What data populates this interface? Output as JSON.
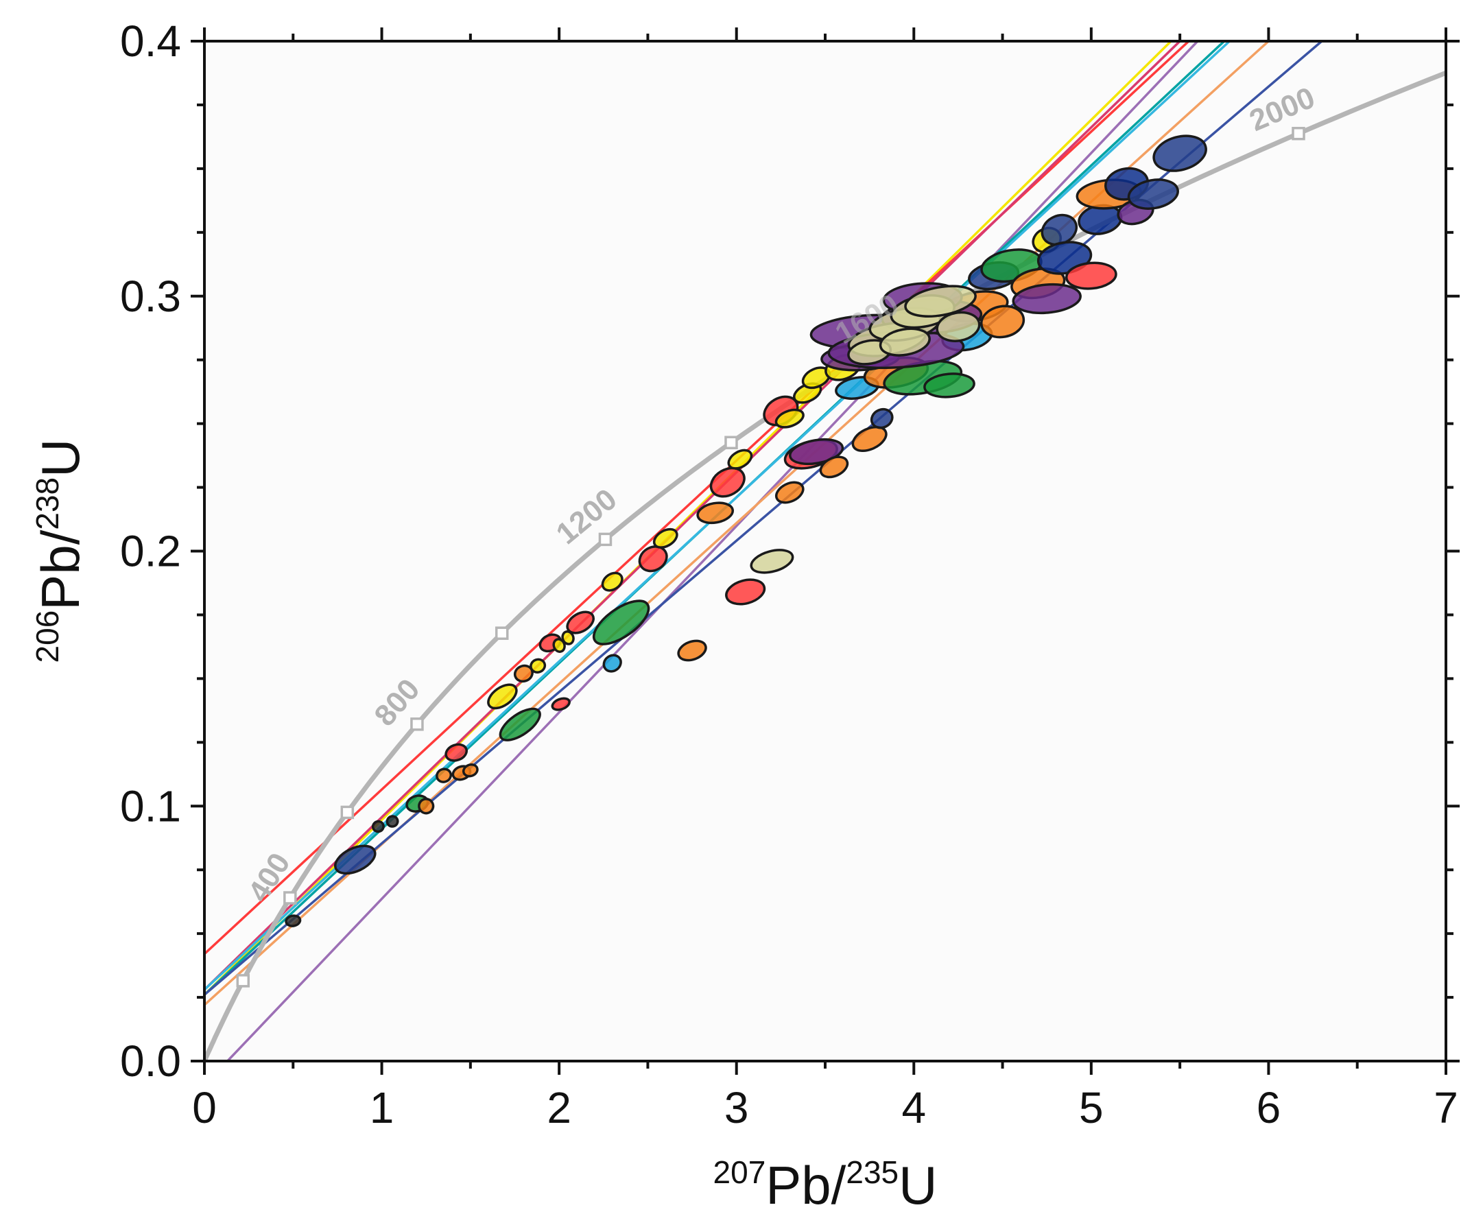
{
  "chart_data": {
    "type": "scatter",
    "subtype": "U-Pb concordia diagram with discordia lines and error ellipses",
    "xlabel": {
      "sup1": "207",
      "base1": "Pb/",
      "sup2": "235",
      "base2": "U"
    },
    "ylabel": {
      "sup1": "206",
      "base1": "Pb/",
      "sup2": "238",
      "base2": "U"
    },
    "xlim": [
      0,
      7
    ],
    "ylim": [
      0,
      0.4
    ],
    "x_ticks": [
      "0",
      "1",
      "2",
      "3",
      "4",
      "5",
      "6",
      "7"
    ],
    "y_ticks": [
      "0.0",
      "0.1",
      "0.2",
      "0.3",
      "0.4"
    ],
    "concordia": {
      "color": "#b5b5b5",
      "markers_Ma": [
        200,
        400,
        600,
        800,
        1000,
        1200,
        1400,
        1600,
        2000
      ],
      "labels": [
        {
          "text": "400",
          "age": 400
        },
        {
          "text": "800",
          "age": 800
        },
        {
          "text": "1200",
          "age": 1200
        },
        {
          "text": "1600",
          "age": 1600
        },
        {
          "text": "2000",
          "age": 2000
        }
      ]
    },
    "discordia_lines": [
      {
        "color": "#f5e600",
        "x0": 0,
        "y0": 0.026,
        "x1": 5.45,
        "y1": 0.4
      },
      {
        "color": "#ff3b3b",
        "x0": 0,
        "y0": 0.042,
        "x1": 5.55,
        "y1": 0.4
      },
      {
        "color": "#d93a6e",
        "x0": 0,
        "y0": 0.028,
        "x1": 5.5,
        "y1": 0.4
      },
      {
        "color": "#9c6fb5",
        "x0": 0.13,
        "y0": 0.0,
        "x1": 5.6,
        "y1": 0.4
      },
      {
        "color": "#00a3a3",
        "x0": 0,
        "y0": 0.026,
        "x1": 5.75,
        "y1": 0.4
      },
      {
        "color": "#35b8e0",
        "x0": 0,
        "y0": 0.028,
        "x1": 5.78,
        "y1": 0.4
      },
      {
        "color": "#f3a062",
        "x0": 0,
        "y0": 0.022,
        "x1": 6.0,
        "y1": 0.4
      },
      {
        "color": "#3a53a4",
        "x0": 0,
        "y0": 0.026,
        "x1": 6.3,
        "y1": 0.4
      }
    ],
    "ellipses": [
      {
        "x": 0.85,
        "y": 0.079,
        "rx": 0.12,
        "ry": 0.0045,
        "rot": -25,
        "color": "#233e8b"
      },
      {
        "x": 0.5,
        "y": 0.055,
        "rx": 0.04,
        "ry": 0.002,
        "rot": -10,
        "color": "#333333"
      },
      {
        "x": 0.98,
        "y": 0.092,
        "rx": 0.03,
        "ry": 0.002,
        "rot": -20,
        "color": "#333333"
      },
      {
        "x": 1.06,
        "y": 0.094,
        "rx": 0.03,
        "ry": 0.002,
        "rot": -20,
        "color": "#333333"
      },
      {
        "x": 1.2,
        "y": 0.101,
        "rx": 0.06,
        "ry": 0.003,
        "rot": -15,
        "color": "#1a9b3c"
      },
      {
        "x": 1.25,
        "y": 0.1,
        "rx": 0.04,
        "ry": 0.0028,
        "rot": -20,
        "color": "#f57f17"
      },
      {
        "x": 1.35,
        "y": 0.112,
        "rx": 0.04,
        "ry": 0.0025,
        "rot": -20,
        "color": "#f57f17"
      },
      {
        "x": 1.45,
        "y": 0.113,
        "rx": 0.05,
        "ry": 0.0025,
        "rot": -20,
        "color": "#f57f17"
      },
      {
        "x": 1.42,
        "y": 0.121,
        "rx": 0.06,
        "ry": 0.003,
        "rot": -20,
        "color": "#ff3b3b"
      },
      {
        "x": 1.5,
        "y": 0.114,
        "rx": 0.04,
        "ry": 0.0022,
        "rot": -20,
        "color": "#f57f17"
      },
      {
        "x": 1.68,
        "y": 0.143,
        "rx": 0.09,
        "ry": 0.0035,
        "rot": -35,
        "color": "#f5e600"
      },
      {
        "x": 1.78,
        "y": 0.132,
        "rx": 0.13,
        "ry": 0.004,
        "rot": -35,
        "color": "#1a9b3c"
      },
      {
        "x": 1.8,
        "y": 0.152,
        "rx": 0.05,
        "ry": 0.003,
        "rot": -20,
        "color": "#f57f17"
      },
      {
        "x": 1.88,
        "y": 0.155,
        "rx": 0.04,
        "ry": 0.0025,
        "rot": -20,
        "color": "#f5e600"
      },
      {
        "x": 1.95,
        "y": 0.164,
        "rx": 0.06,
        "ry": 0.003,
        "rot": -25,
        "color": "#ff3b3b"
      },
      {
        "x": 2.0,
        "y": 0.163,
        "rx": 0.03,
        "ry": 0.0025,
        "rot": -20,
        "color": "#f5e600"
      },
      {
        "x": 2.05,
        "y": 0.166,
        "rx": 0.03,
        "ry": 0.0025,
        "rot": -20,
        "color": "#f5e600"
      },
      {
        "x": 2.12,
        "y": 0.172,
        "rx": 0.08,
        "ry": 0.0035,
        "rot": -30,
        "color": "#ff3b3b"
      },
      {
        "x": 2.01,
        "y": 0.14,
        "rx": 0.05,
        "ry": 0.002,
        "rot": -20,
        "color": "#ff3b3b"
      },
      {
        "x": 2.3,
        "y": 0.188,
        "rx": 0.06,
        "ry": 0.003,
        "rot": -35,
        "color": "#f5e600"
      },
      {
        "x": 2.35,
        "y": 0.172,
        "rx": 0.18,
        "ry": 0.0055,
        "rot": -35,
        "color": "#1a9b3c"
      },
      {
        "x": 2.3,
        "y": 0.156,
        "rx": 0.05,
        "ry": 0.003,
        "rot": -35,
        "color": "#1aa3dc"
      },
      {
        "x": 2.53,
        "y": 0.197,
        "rx": 0.08,
        "ry": 0.0045,
        "rot": -30,
        "color": "#ff3b3b"
      },
      {
        "x": 2.6,
        "y": 0.205,
        "rx": 0.07,
        "ry": 0.003,
        "rot": -30,
        "color": "#f5e600"
      },
      {
        "x": 2.75,
        "y": 0.161,
        "rx": 0.08,
        "ry": 0.0035,
        "rot": -20,
        "color": "#f57f17"
      },
      {
        "x": 2.88,
        "y": 0.215,
        "rx": 0.1,
        "ry": 0.0038,
        "rot": -10,
        "color": "#f57f17"
      },
      {
        "x": 2.95,
        "y": 0.227,
        "rx": 0.1,
        "ry": 0.005,
        "rot": -30,
        "color": "#ff3b3b"
      },
      {
        "x": 3.02,
        "y": 0.236,
        "rx": 0.07,
        "ry": 0.003,
        "rot": -30,
        "color": "#f5e600"
      },
      {
        "x": 3.05,
        "y": 0.184,
        "rx": 0.11,
        "ry": 0.0045,
        "rot": -15,
        "color": "#ff3b3b"
      },
      {
        "x": 3.2,
        "y": 0.196,
        "rx": 0.12,
        "ry": 0.004,
        "rot": -15,
        "color": "#d4d49a"
      },
      {
        "x": 3.25,
        "y": 0.255,
        "rx": 0.1,
        "ry": 0.005,
        "rot": -30,
        "color": "#ff3b3b"
      },
      {
        "x": 3.3,
        "y": 0.252,
        "rx": 0.08,
        "ry": 0.003,
        "rot": -20,
        "color": "#f5e600"
      },
      {
        "x": 3.3,
        "y": 0.223,
        "rx": 0.08,
        "ry": 0.0035,
        "rot": -25,
        "color": "#f57f17"
      },
      {
        "x": 3.4,
        "y": 0.262,
        "rx": 0.08,
        "ry": 0.0032,
        "rot": -25,
        "color": "#f5e600"
      },
      {
        "x": 3.45,
        "y": 0.268,
        "rx": 0.08,
        "ry": 0.0035,
        "rot": -25,
        "color": "#f5e600"
      },
      {
        "x": 3.42,
        "y": 0.238,
        "rx": 0.15,
        "ry": 0.005,
        "rot": -15,
        "color": "#ff3b3b"
      },
      {
        "x": 3.45,
        "y": 0.239,
        "rx": 0.15,
        "ry": 0.0045,
        "rot": -10,
        "color": "#6b2d8c"
      },
      {
        "x": 3.55,
        "y": 0.233,
        "rx": 0.08,
        "ry": 0.0035,
        "rot": -25,
        "color": "#f57f17"
      },
      {
        "x": 3.6,
        "y": 0.272,
        "rx": 0.1,
        "ry": 0.0045,
        "rot": -20,
        "color": "#f5e600"
      },
      {
        "x": 3.68,
        "y": 0.264,
        "rx": 0.12,
        "ry": 0.004,
        "rot": -10,
        "color": "#1aa3dc"
      },
      {
        "x": 3.75,
        "y": 0.244,
        "rx": 0.1,
        "ry": 0.004,
        "rot": -25,
        "color": "#f57f17"
      },
      {
        "x": 3.82,
        "y": 0.252,
        "rx": 0.06,
        "ry": 0.0035,
        "rot": -25,
        "color": "#233e8b"
      },
      {
        "x": 3.9,
        "y": 0.27,
        "rx": 0.18,
        "ry": 0.0055,
        "rot": -10,
        "color": "#f57f17"
      },
      {
        "x": 4.05,
        "y": 0.268,
        "rx": 0.22,
        "ry": 0.006,
        "rot": -10,
        "color": "#1a9b3c"
      },
      {
        "x": 4.2,
        "y": 0.265,
        "rx": 0.14,
        "ry": 0.0045,
        "rot": -5,
        "color": "#1a9b3c"
      },
      {
        "x": 4.3,
        "y": 0.284,
        "rx": 0.14,
        "ry": 0.005,
        "rot": -10,
        "color": "#1aa3dc"
      },
      {
        "x": 4.35,
        "y": 0.296,
        "rx": 0.18,
        "ry": 0.0055,
        "rot": -10,
        "color": "#f57f17"
      },
      {
        "x": 4.45,
        "y": 0.308,
        "rx": 0.14,
        "ry": 0.005,
        "rot": -10,
        "color": "#233e8b"
      },
      {
        "x": 4.55,
        "y": 0.312,
        "rx": 0.17,
        "ry": 0.006,
        "rot": -10,
        "color": "#1a9b3c"
      },
      {
        "x": 4.5,
        "y": 0.29,
        "rx": 0.12,
        "ry": 0.006,
        "rot": -10,
        "color": "#f57f17"
      },
      {
        "x": 4.7,
        "y": 0.305,
        "rx": 0.15,
        "ry": 0.0055,
        "rot": -10,
        "color": "#f57f17"
      },
      {
        "x": 4.75,
        "y": 0.299,
        "rx": 0.19,
        "ry": 0.0055,
        "rot": -5,
        "color": "#6b2d8c"
      },
      {
        "x": 4.75,
        "y": 0.322,
        "rx": 0.08,
        "ry": 0.0045,
        "rot": -25,
        "color": "#f5e600"
      },
      {
        "x": 4.82,
        "y": 0.326,
        "rx": 0.1,
        "ry": 0.0055,
        "rot": -25,
        "color": "#233e8b"
      },
      {
        "x": 4.85,
        "y": 0.315,
        "rx": 0.15,
        "ry": 0.006,
        "rot": -10,
        "color": "#0d2f8c"
      },
      {
        "x": 5.0,
        "y": 0.308,
        "rx": 0.14,
        "ry": 0.005,
        "rot": -5,
        "color": "#ff3b3b"
      },
      {
        "x": 5.05,
        "y": 0.33,
        "rx": 0.12,
        "ry": 0.0055,
        "rot": -10,
        "color": "#0d2f8c"
      },
      {
        "x": 5.1,
        "y": 0.34,
        "rx": 0.18,
        "ry": 0.0055,
        "rot": -5,
        "color": "#f57f17"
      },
      {
        "x": 5.2,
        "y": 0.344,
        "rx": 0.12,
        "ry": 0.006,
        "rot": -10,
        "color": "#0d2f8c"
      },
      {
        "x": 5.25,
        "y": 0.333,
        "rx": 0.1,
        "ry": 0.0045,
        "rot": -15,
        "color": "#6b2d8c"
      },
      {
        "x": 5.35,
        "y": 0.34,
        "rx": 0.14,
        "ry": 0.0055,
        "rot": -10,
        "color": "#233e8b"
      },
      {
        "x": 5.5,
        "y": 0.356,
        "rx": 0.15,
        "ry": 0.0065,
        "rot": -15,
        "color": "#233e8b"
      },
      {
        "x": 3.75,
        "y": 0.286,
        "rx": 0.33,
        "ry": 0.0065,
        "rot": -3,
        "color": "#6b2d8c"
      },
      {
        "x": 3.7,
        "y": 0.276,
        "rx": 0.22,
        "ry": 0.005,
        "rot": -3,
        "color": "#6b2d8c"
      },
      {
        "x": 3.9,
        "y": 0.279,
        "rx": 0.38,
        "ry": 0.007,
        "rot": -3,
        "color": "#6b2d8c"
      },
      {
        "x": 4.1,
        "y": 0.292,
        "rx": 0.28,
        "ry": 0.0065,
        "rot": -3,
        "color": "#6b2d8c"
      },
      {
        "x": 4.05,
        "y": 0.299,
        "rx": 0.22,
        "ry": 0.006,
        "rot": -3,
        "color": "#6b2d8c"
      },
      {
        "x": 3.85,
        "y": 0.283,
        "rx": 0.22,
        "ry": 0.006,
        "rot": -10,
        "color": "#d4d49a"
      },
      {
        "x": 3.95,
        "y": 0.289,
        "rx": 0.2,
        "ry": 0.006,
        "rot": -10,
        "color": "#d4d49a"
      },
      {
        "x": 4.05,
        "y": 0.294,
        "rx": 0.18,
        "ry": 0.006,
        "rot": -10,
        "color": "#d4d49a"
      },
      {
        "x": 4.15,
        "y": 0.298,
        "rx": 0.2,
        "ry": 0.0055,
        "rot": -10,
        "color": "#d4d49a"
      },
      {
        "x": 3.75,
        "y": 0.278,
        "rx": 0.12,
        "ry": 0.0045,
        "rot": -10,
        "color": "#d4d49a"
      },
      {
        "x": 3.95,
        "y": 0.282,
        "rx": 0.14,
        "ry": 0.005,
        "rot": -10,
        "color": "#d4d49a"
      },
      {
        "x": 4.25,
        "y": 0.288,
        "rx": 0.12,
        "ry": 0.0055,
        "rot": -10,
        "color": "#d4d49a"
      }
    ]
  }
}
